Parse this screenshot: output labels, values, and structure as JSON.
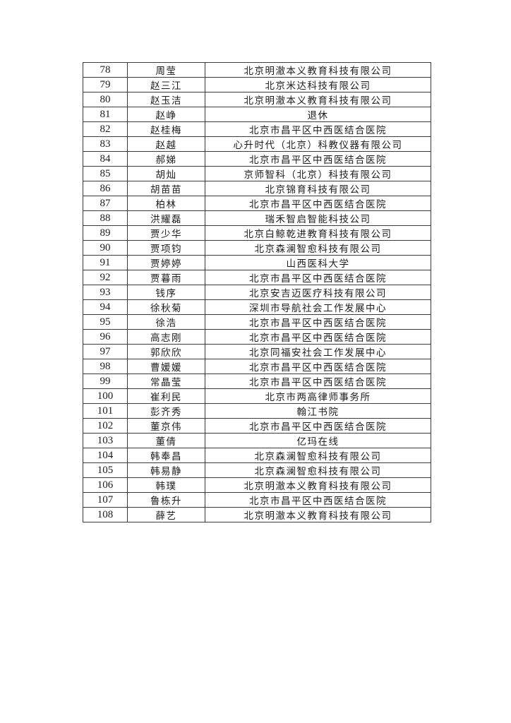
{
  "page": {
    "kind": "document-table-page",
    "background_color": "#ffffff",
    "border_color": "#3c3c3c",
    "text_color": "#1c1c1c"
  },
  "table": {
    "columns": [
      {
        "key": "number",
        "label": ""
      },
      {
        "key": "name",
        "label": ""
      },
      {
        "key": "org",
        "label": ""
      }
    ],
    "rows": [
      {
        "number": "78",
        "name": "周莹",
        "org": "北京明澈本义教育科技有限公司"
      },
      {
        "number": "79",
        "name": "赵三江",
        "org": "北京米达科技有限公司"
      },
      {
        "number": "80",
        "name": "赵玉洁",
        "org": "北京明澈本义教育科技有限公司"
      },
      {
        "number": "81",
        "name": "赵峥",
        "org": "退休"
      },
      {
        "number": "82",
        "name": "赵桂梅",
        "org": "北京市昌平区中西医结合医院"
      },
      {
        "number": "83",
        "name": "赵越",
        "org": "心升时代（北京）科教仪器有限公司"
      },
      {
        "number": "84",
        "name": "郝娣",
        "org": "北京市昌平区中西医结合医院"
      },
      {
        "number": "85",
        "name": "胡灿",
        "org": "京师智科（北京）科技有限公司"
      },
      {
        "number": "86",
        "name": "胡苗苗",
        "org": "北京锦育科技有限公司"
      },
      {
        "number": "87",
        "name": "柏林",
        "org": "北京市昌平区中西医结合医院"
      },
      {
        "number": "88",
        "name": "洪耀磊",
        "org": "瑞禾智启智能科技公司"
      },
      {
        "number": "89",
        "name": "贾少华",
        "org": "北京白鲸乾进教育科技有限公司"
      },
      {
        "number": "90",
        "name": "贾项钧",
        "org": "北京森澜智愈科技有限公司"
      },
      {
        "number": "91",
        "name": "贾婷婷",
        "org": "山西医科大学"
      },
      {
        "number": "92",
        "name": "贾暮雨",
        "org": "北京市昌平区中西医结合医院"
      },
      {
        "number": "93",
        "name": "钱序",
        "org": "北京安吉迈医疗科技有限公司"
      },
      {
        "number": "94",
        "name": "徐秋菊",
        "org": "深圳市导航社会工作发展中心"
      },
      {
        "number": "95",
        "name": "徐浩",
        "org": "北京市昌平区中西医结合医院"
      },
      {
        "number": "96",
        "name": "高志刚",
        "org": "北京市昌平区中西医结合医院"
      },
      {
        "number": "97",
        "name": "郭欣欣",
        "org": "北京同福安社会工作发展中心"
      },
      {
        "number": "98",
        "name": "曹媛媛",
        "org": "北京市昌平区中西医结合医院"
      },
      {
        "number": "99",
        "name": "常晶莹",
        "org": "北京市昌平区中西医结合医院"
      },
      {
        "number": "100",
        "name": "崔利民",
        "org": "北京市两高律师事务所"
      },
      {
        "number": "101",
        "name": "彭齐秀",
        "org": "翰江书院"
      },
      {
        "number": "102",
        "name": "董京伟",
        "org": "北京市昌平区中西医结合医院"
      },
      {
        "number": "103",
        "name": "董倩",
        "org": "亿玛在线"
      },
      {
        "number": "104",
        "name": "韩奉昌",
        "org": "北京森澜智愈科技有限公司"
      },
      {
        "number": "105",
        "name": "韩易静",
        "org": "北京森澜智愈科技有限公司"
      },
      {
        "number": "106",
        "name": "韩璞",
        "org": "北京明澈本义教育科技有限公司"
      },
      {
        "number": "107",
        "name": "鲁栋升",
        "org": "北京市昌平区中西医结合医院"
      },
      {
        "number": "108",
        "name": "薛艺",
        "org": "北京明澈本义教育科技有限公司"
      }
    ]
  }
}
